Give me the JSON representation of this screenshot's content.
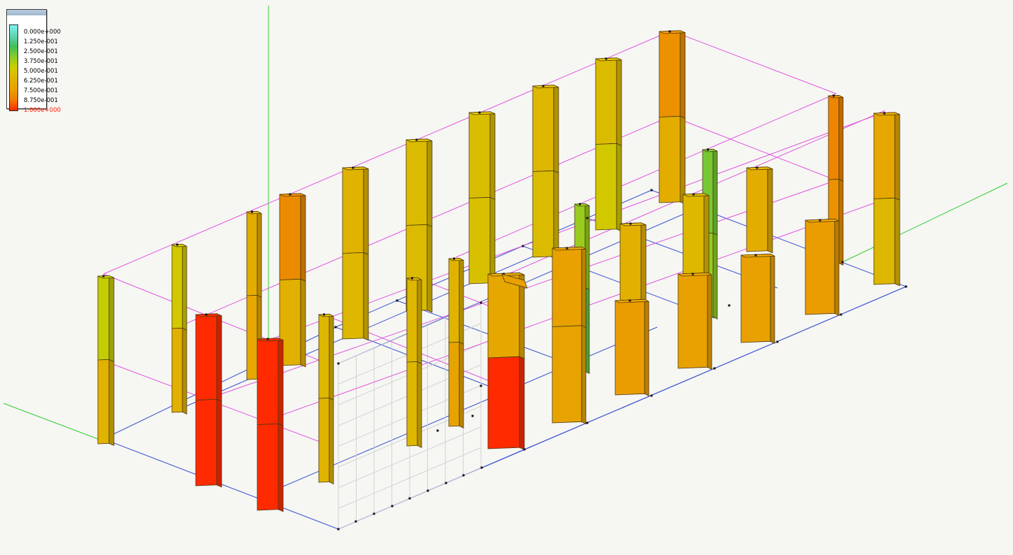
{
  "legend": {
    "labels": [
      "0.000e+000",
      "1.250e-001",
      "2.500e-001",
      "3.750e-001",
      "5.000e-001",
      "6.250e-001",
      "7.500e-001",
      "8.750e-001",
      "1.000e+000"
    ],
    "colors": [
      "#7ef2f2",
      "#5ed2b0",
      "#3fbf55",
      "#8ccc26",
      "#cfcc00",
      "#e1b200",
      "#e9a000",
      "#f07a00",
      "#ff2a00"
    ],
    "label_text_color": "#000000",
    "max_label_color": "#ff1a00"
  },
  "colors": {
    "background": "#f6f6f3",
    "axis_y": "#33cc33",
    "axis_x": "#33cc33",
    "beam_line": "#e055e0",
    "floor_line": "#3a50d0",
    "mesh_line": "#d2d2d2",
    "edge": "#4a3a10",
    "node": "#101010"
  },
  "scene": {
    "members": [
      {
        "kind": "column",
        "ratios": [
          0.48,
          0.62
        ]
      },
      {
        "kind": "column",
        "ratios": [
          0.52,
          0.64
        ]
      },
      {
        "kind": "column",
        "ratios": [
          0.66,
          0.7
        ]
      },
      {
        "kind": "column",
        "ratios": [
          0.82,
          0.64
        ]
      },
      {
        "kind": "column",
        "ratios": [
          0.62,
          0.6
        ]
      },
      {
        "kind": "column",
        "ratios": [
          0.58,
          0.58
        ]
      },
      {
        "kind": "column",
        "ratios": [
          0.57,
          0.56
        ]
      },
      {
        "kind": "column",
        "ratios": [
          0.6,
          0.58
        ]
      },
      {
        "kind": "column",
        "ratios": [
          0.58,
          0.52
        ]
      },
      {
        "kind": "column",
        "ratios": [
          0.8,
          0.66
        ]
      },
      {
        "kind": "column",
        "ratios": [
          0.84,
          0.8
        ]
      },
      {
        "kind": "column",
        "ratios": [
          0.7,
          0.6
        ]
      },
      {
        "kind": "column",
        "ratios": [
          0.34,
          0.38
        ]
      },
      {
        "kind": "column",
        "ratios": [
          0.6,
          0.62
        ]
      },
      {
        "kind": "column",
        "ratios": [
          0.6,
          0.6
        ]
      },
      {
        "kind": "column",
        "ratios": [
          0.62,
          0.72
        ]
      },
      {
        "kind": "column",
        "ratios": [
          0.64,
          0.7
        ]
      },
      {
        "kind": "column",
        "ratios": [
          0.6,
          0.64
        ]
      },
      {
        "kind": "column",
        "ratios": [
          0.66,
          0.6
        ]
      },
      {
        "kind": "column",
        "ratios": [
          0.4,
          0.3
        ]
      },
      {
        "kind": "wall",
        "ratios": [
          1.0,
          1.0
        ]
      },
      {
        "kind": "wall",
        "ratios": [
          1.0,
          1.0
        ]
      },
      {
        "kind": "wall",
        "ratios": [
          0.7,
          1.0
        ]
      },
      {
        "kind": "wall",
        "ratios": [
          0.74,
          0.72
        ]
      },
      {
        "kind": "wall",
        "ratios": [
          0.76,
          0.72
        ]
      },
      {
        "kind": "wall",
        "ratios": [
          0.74,
          0.72
        ]
      },
      {
        "kind": "wall",
        "ratios": [
          0.74,
          0.72
        ]
      },
      {
        "kind": "wall",
        "ratios": [
          0.76,
          0.72
        ]
      }
    ]
  }
}
